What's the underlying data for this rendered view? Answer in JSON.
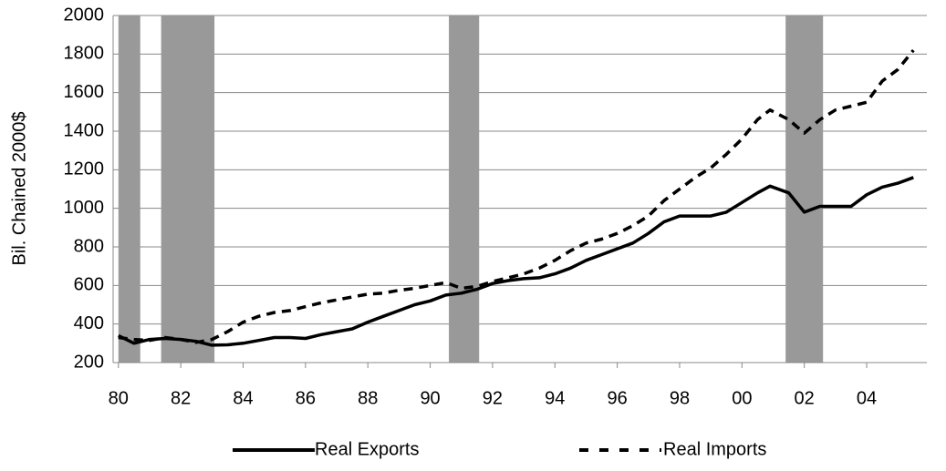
{
  "chart_data": {
    "type": "line",
    "y_label": "Bil. Chained 2000$",
    "x": [
      1980.0,
      1980.5,
      1981.0,
      1981.5,
      1982.0,
      1982.5,
      1983.0,
      1983.5,
      1984.0,
      1984.5,
      1985.0,
      1985.5,
      1986.0,
      1986.5,
      1987.0,
      1987.5,
      1988.0,
      1988.5,
      1989.0,
      1989.5,
      1990.0,
      1990.5,
      1991.0,
      1991.5,
      1992.0,
      1992.5,
      1993.0,
      1993.5,
      1994.0,
      1994.5,
      1995.0,
      1995.5,
      1996.0,
      1996.5,
      1997.0,
      1997.5,
      1998.0,
      1998.5,
      1999.0,
      1999.5,
      2000.0,
      2000.5,
      2000.9,
      2001.5,
      2002.0,
      2002.5,
      2003.0,
      2003.5,
      2004.0,
      2004.5,
      2005.0,
      2005.5
    ],
    "series": [
      {
        "name": "Real Exports",
        "color": "#000000",
        "style": "solid",
        "values": [
          340,
          300,
          320,
          325,
          320,
          310,
          290,
          292,
          300,
          315,
          330,
          330,
          325,
          345,
          360,
          375,
          410,
          440,
          470,
          500,
          520,
          550,
          560,
          580,
          610,
          625,
          635,
          640,
          660,
          690,
          730,
          760,
          790,
          820,
          870,
          930,
          960,
          960,
          960,
          980,
          1030,
          1080,
          1115,
          1080,
          980,
          1010,
          1010,
          1010,
          1070,
          1110,
          1130,
          1160
        ]
      },
      {
        "name": "Real Imports",
        "color": "#000000",
        "style": "dashed",
        "values": [
          330,
          320,
          315,
          330,
          320,
          305,
          320,
          360,
          410,
          440,
          460,
          470,
          490,
          510,
          525,
          540,
          555,
          560,
          575,
          585,
          600,
          615,
          585,
          595,
          620,
          640,
          660,
          690,
          730,
          780,
          820,
          840,
          870,
          910,
          960,
          1040,
          1100,
          1160,
          1210,
          1280,
          1360,
          1460,
          1510,
          1460,
          1390,
          1460,
          1510,
          1530,
          1550,
          1660,
          1720,
          1820
        ]
      }
    ],
    "shaded_periods": [
      [
        1980.0,
        1980.7
      ],
      [
        1981.37,
        1983.08
      ],
      [
        1990.6,
        1991.57
      ],
      [
        2001.4,
        2002.6
      ]
    ],
    "shade_color": "#999999",
    "xlim": [
      1979.83,
      2005.93
    ],
    "xticks": [
      {
        "value": 1980,
        "label": "80"
      },
      {
        "value": 1982,
        "label": "82"
      },
      {
        "value": 1984,
        "label": "84"
      },
      {
        "value": 1986,
        "label": "86"
      },
      {
        "value": 1988,
        "label": "88"
      },
      {
        "value": 1990,
        "label": "90"
      },
      {
        "value": 1992,
        "label": "92"
      },
      {
        "value": 1994,
        "label": "94"
      },
      {
        "value": 1996,
        "label": "96"
      },
      {
        "value": 1998,
        "label": "98"
      },
      {
        "value": 2000,
        "label": "00"
      },
      {
        "value": 2002,
        "label": "02"
      },
      {
        "value": 2004,
        "label": "04"
      }
    ],
    "ylim": [
      200,
      2000
    ],
    "yticks": [
      200,
      400,
      600,
      800,
      1000,
      1200,
      1400,
      1600,
      1800,
      2000
    ],
    "grid": true,
    "legend": "bottom"
  }
}
